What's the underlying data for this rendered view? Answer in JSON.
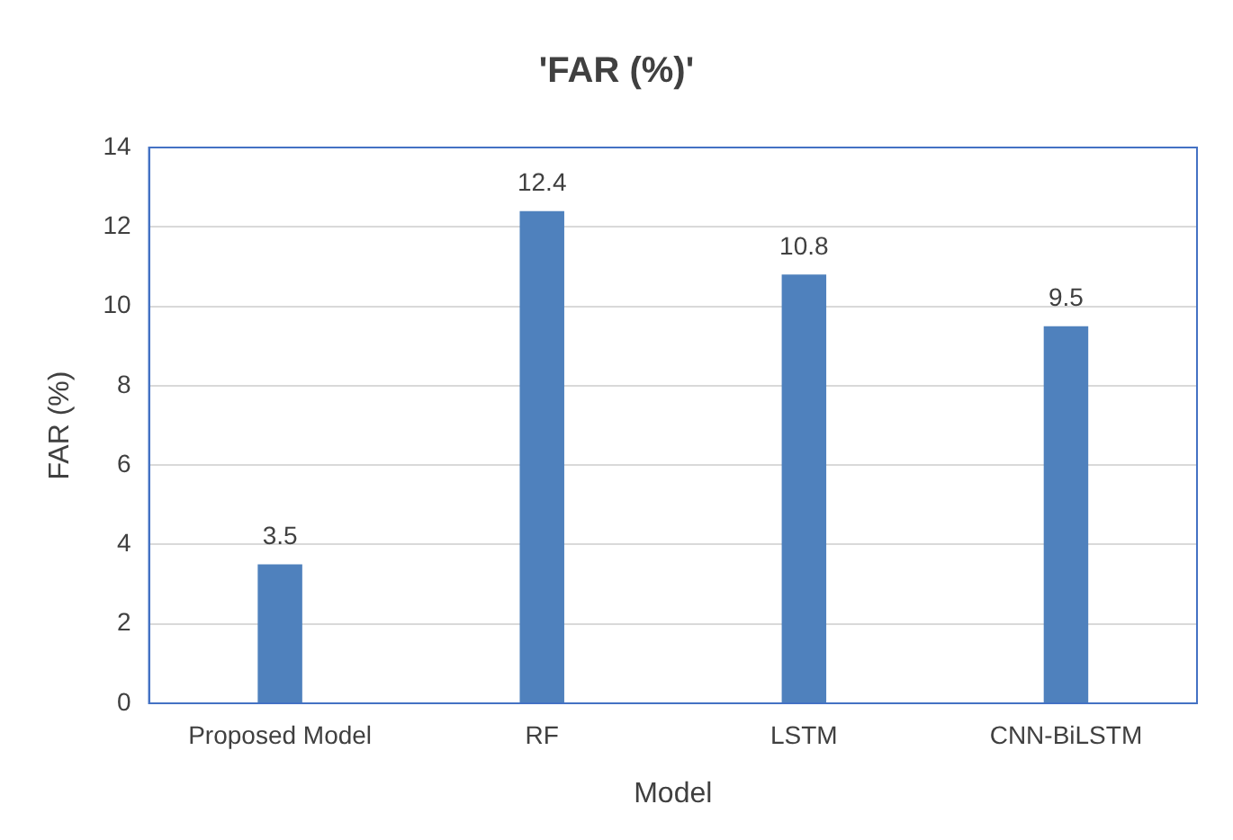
{
  "chart_data": {
    "type": "bar",
    "title": "'FAR (%)'",
    "xlabel": "Model",
    "ylabel": "FAR (%)",
    "categories": [
      "Proposed Model",
      "RF",
      "LSTM",
      "CNN-BiLSTM"
    ],
    "values": [
      3.5,
      12.4,
      10.8,
      9.5
    ],
    "color": "#4f81bd",
    "ylim": [
      0,
      14
    ],
    "yticks": [
      0,
      2,
      4,
      6,
      8,
      10,
      12,
      14
    ],
    "grid": "y",
    "legend": false,
    "data_labels": true
  }
}
